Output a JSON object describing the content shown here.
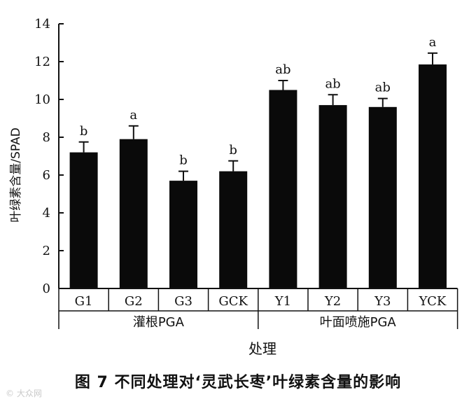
{
  "chart_data": {
    "type": "bar",
    "categories": [
      "G1",
      "G2",
      "G3",
      "GCK",
      "Y1",
      "Y2",
      "Y3",
      "YCK"
    ],
    "values": [
      7.2,
      7.9,
      5.7,
      6.2,
      10.5,
      9.7,
      9.6,
      11.85
    ],
    "errors": [
      0.55,
      0.7,
      0.5,
      0.55,
      0.5,
      0.55,
      0.45,
      0.6
    ],
    "significance": [
      "b",
      "a",
      "b",
      "b",
      "ab",
      "ab",
      "ab",
      "a"
    ],
    "groups": [
      {
        "label": "灌根PGA",
        "categories": [
          "G1",
          "G2",
          "G3",
          "GCK"
        ]
      },
      {
        "label": "叶面喷施PGA",
        "categories": [
          "Y1",
          "Y2",
          "Y3",
          "YCK"
        ]
      }
    ],
    "ylabel": "叶绿素含量/SPAD",
    "xlabel": "处理",
    "ylim": [
      0,
      14
    ],
    "yticks": [
      0,
      2,
      4,
      6,
      8,
      10,
      12,
      14
    ],
    "bar_color": "#0a0a0a",
    "grid": false
  },
  "caption": "图 7   不同处理对‘灵武长枣’叶绿素含量的影响",
  "watermark": "© 大众网"
}
